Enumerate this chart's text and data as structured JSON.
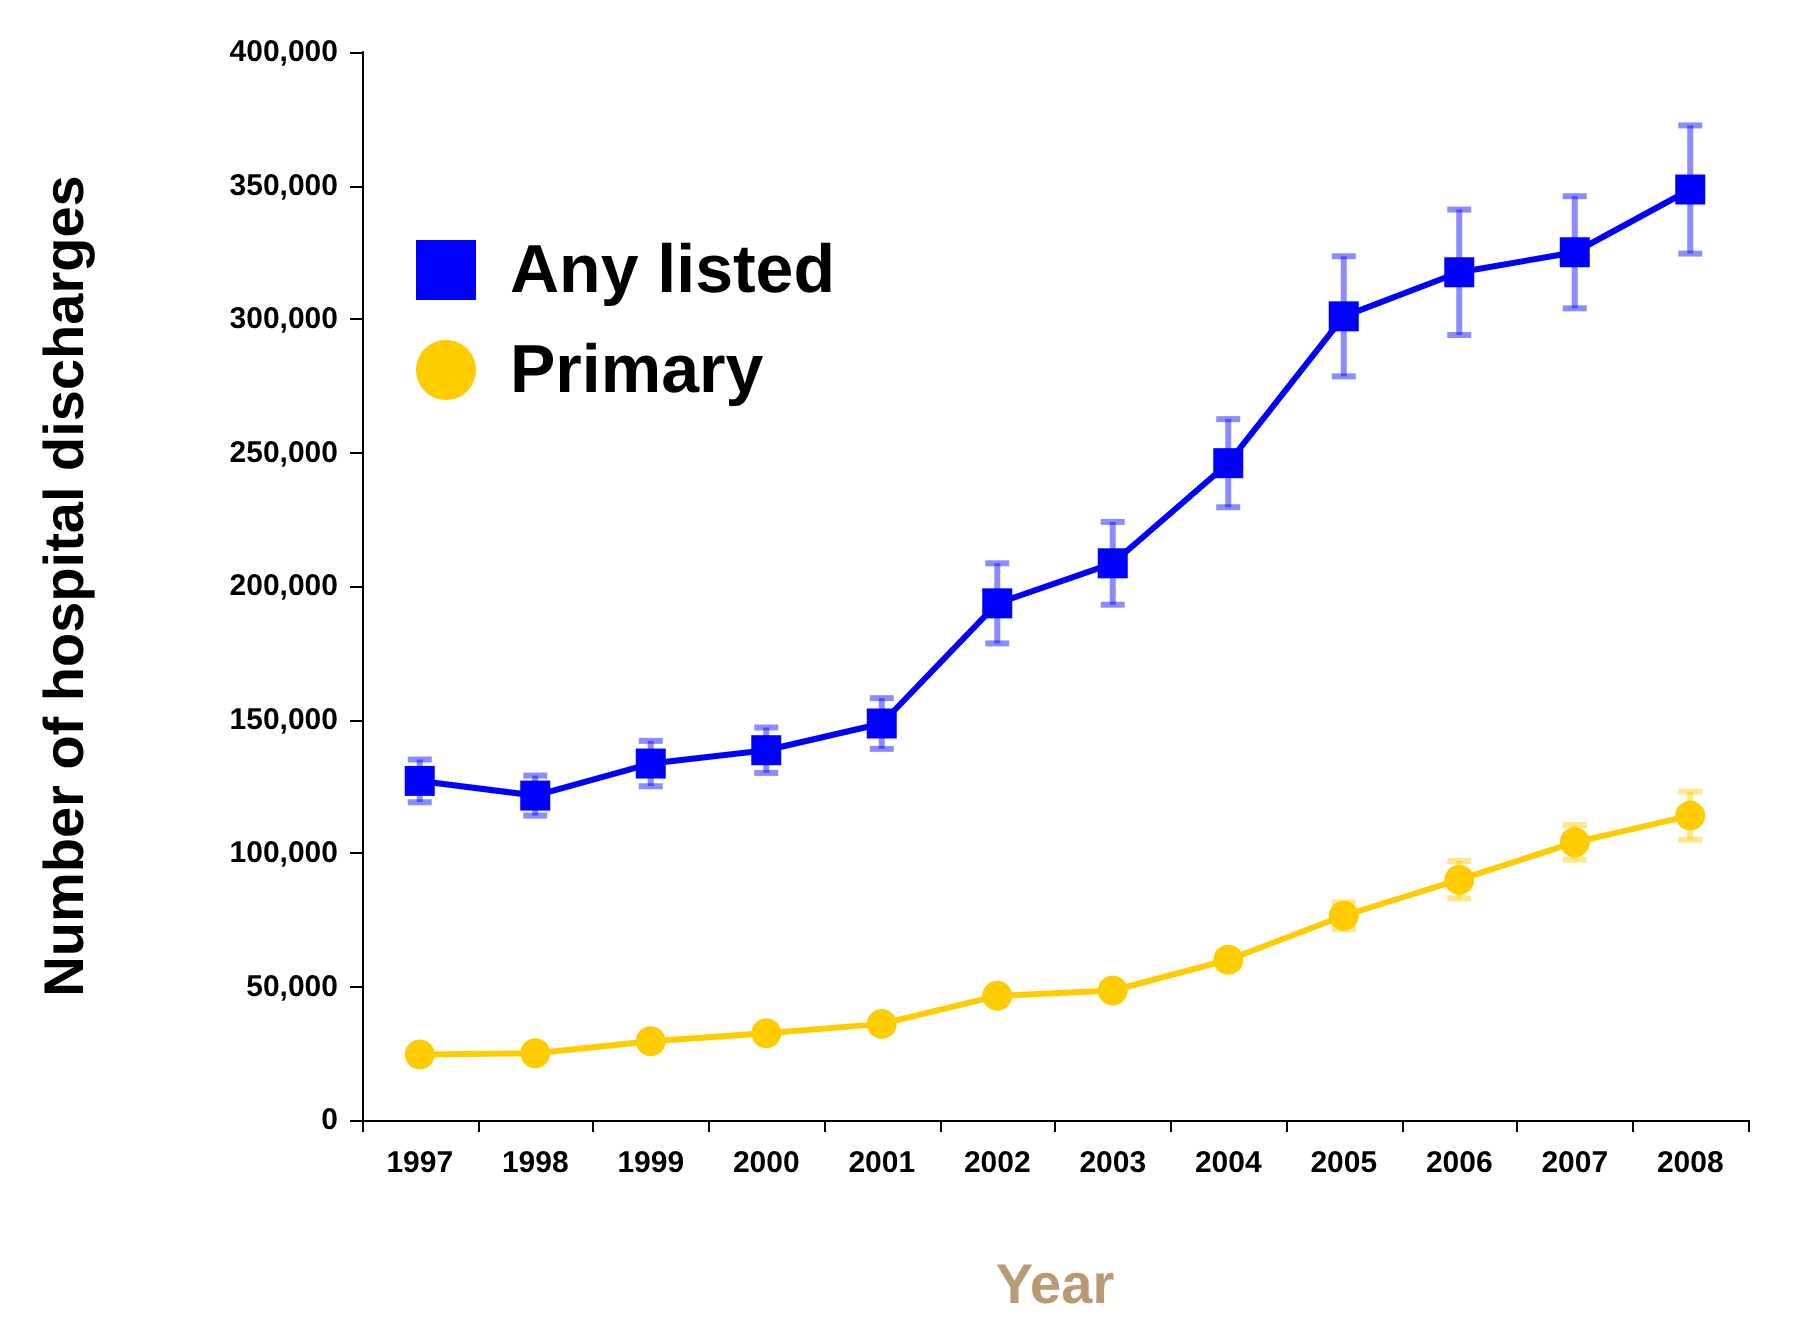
{
  "chart_data": {
    "type": "line",
    "xlabel": "Year",
    "ylabel": "Number of hospital discharges",
    "categories": [
      "1997",
      "1998",
      "1999",
      "2000",
      "2001",
      "2002",
      "2003",
      "2004",
      "2005",
      "2006",
      "2007",
      "2008"
    ],
    "series": [
      {
        "name": "Any listed",
        "color": "#0000ff",
        "marker": "square",
        "values": [
          127000,
          121500,
          133500,
          138500,
          148500,
          193500,
          208500,
          246000,
          301000,
          317500,
          325000,
          348500
        ],
        "errors": [
          8000,
          7500,
          8500,
          8500,
          9500,
          15000,
          15500,
          16500,
          22500,
          23500,
          21000,
          24000
        ]
      },
      {
        "name": "Primary",
        "color": "#ffcc00",
        "marker": "circle",
        "values": [
          24500,
          25000,
          29500,
          32500,
          36000,
          46500,
          48500,
          60000,
          76500,
          90000,
          104000,
          114000
        ],
        "errors": [
          null,
          null,
          null,
          null,
          null,
          null,
          null,
          3000,
          5000,
          7000,
          6500,
          9000
        ]
      }
    ],
    "ylim": [
      0,
      400000
    ],
    "yticks": [
      0,
      {
        "value": 50000,
        "label": "50,000"
      },
      {
        "value": 100000,
        "label": "100,000"
      },
      {
        "value": 150000,
        "label": "150,000"
      },
      {
        "value": 200000,
        "label": "200,000"
      },
      {
        "value": 250000,
        "label": "250,000"
      },
      {
        "value": 300000,
        "label": "300,000"
      },
      {
        "value": 350000,
        "label": "350,000"
      },
      {
        "value": 400000,
        "label": "400,000"
      }
    ],
    "grid": false,
    "legend": "top left",
    "line_style": "solid"
  }
}
